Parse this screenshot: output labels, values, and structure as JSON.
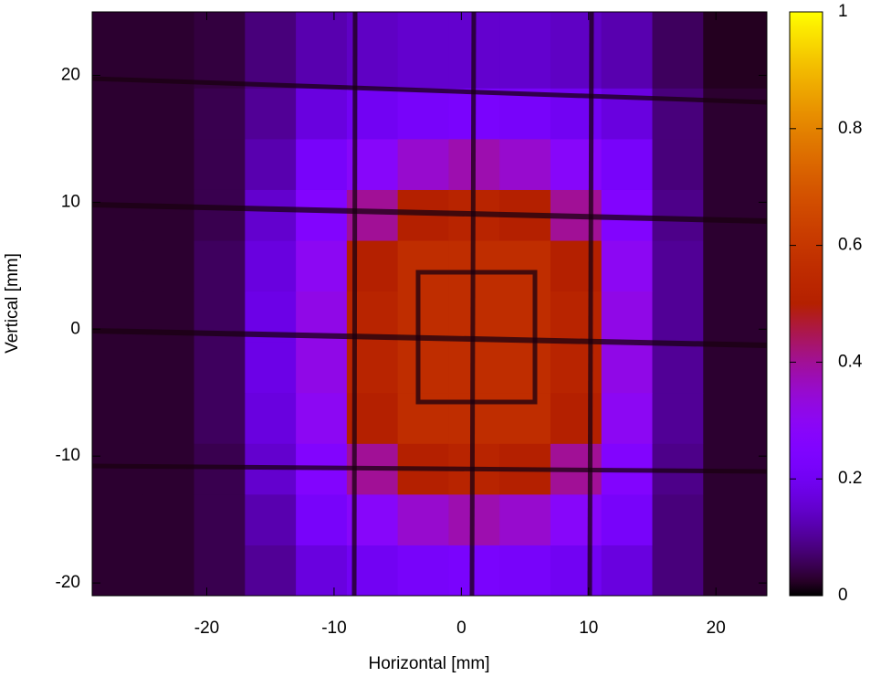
{
  "chart_data": {
    "type": "heatmap",
    "xlabel": "Horizontal [mm]",
    "ylabel": "Vertical [mm]",
    "xlim": [
      -29,
      24
    ],
    "ylim": [
      -21,
      25
    ],
    "xticks": [
      -20,
      -10,
      0,
      10,
      20
    ],
    "yticks": [
      -20,
      -10,
      0,
      10,
      20
    ],
    "colormap": "gnuplot",
    "clim": [
      0,
      1
    ],
    "cticks": [
      0,
      0.2,
      0.4,
      0.6,
      0.8,
      1
    ],
    "x_edges": [
      -29,
      -25,
      -21,
      -17,
      -13,
      -9,
      -5,
      -1,
      3,
      7,
      11,
      15,
      19,
      24
    ],
    "y_edges": [
      -21,
      -17,
      -13,
      -9,
      -5,
      -1,
      3,
      7,
      11,
      15,
      19,
      25
    ],
    "z": [
      [
        0.03,
        0.03,
        0.05,
        0.1,
        0.17,
        0.2,
        0.22,
        0.23,
        0.22,
        0.2,
        0.17,
        0.08,
        0.03
      ],
      [
        0.03,
        0.03,
        0.05,
        0.12,
        0.22,
        0.28,
        0.35,
        0.38,
        0.35,
        0.28,
        0.22,
        0.08,
        0.03
      ],
      [
        0.03,
        0.03,
        0.05,
        0.15,
        0.26,
        0.4,
        0.5,
        0.52,
        0.5,
        0.4,
        0.26,
        0.09,
        0.03
      ],
      [
        0.03,
        0.03,
        0.06,
        0.17,
        0.3,
        0.5,
        0.56,
        0.56,
        0.56,
        0.5,
        0.3,
        0.1,
        0.03
      ],
      [
        0.03,
        0.03,
        0.06,
        0.18,
        0.32,
        0.52,
        0.56,
        0.56,
        0.56,
        0.52,
        0.32,
        0.1,
        0.03
      ],
      [
        0.03,
        0.03,
        0.06,
        0.18,
        0.32,
        0.52,
        0.56,
        0.56,
        0.56,
        0.52,
        0.32,
        0.1,
        0.03
      ],
      [
        0.03,
        0.03,
        0.06,
        0.17,
        0.3,
        0.5,
        0.56,
        0.56,
        0.56,
        0.5,
        0.3,
        0.1,
        0.03
      ],
      [
        0.03,
        0.03,
        0.05,
        0.15,
        0.26,
        0.4,
        0.5,
        0.52,
        0.5,
        0.4,
        0.26,
        0.09,
        0.03
      ],
      [
        0.03,
        0.03,
        0.05,
        0.12,
        0.22,
        0.28,
        0.35,
        0.38,
        0.35,
        0.28,
        0.22,
        0.08,
        0.03
      ],
      [
        0.03,
        0.03,
        0.05,
        0.1,
        0.17,
        0.2,
        0.22,
        0.23,
        0.22,
        0.2,
        0.17,
        0.08,
        0.03
      ],
      [
        0.03,
        0.03,
        0.04,
        0.08,
        0.12,
        0.14,
        0.15,
        0.15,
        0.15,
        0.14,
        0.12,
        0.06,
        0.02
      ]
    ]
  }
}
